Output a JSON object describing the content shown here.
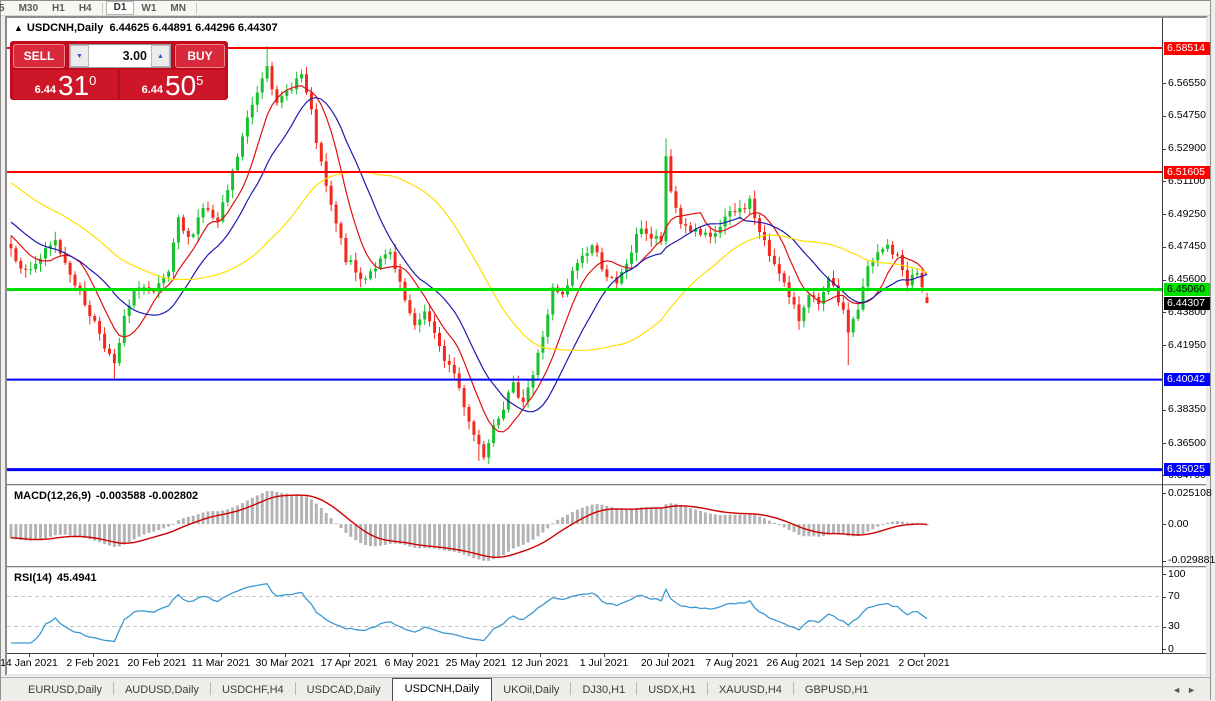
{
  "toolbar": {
    "timeframes": [
      {
        "label": "5",
        "active": false
      },
      {
        "label": "M30",
        "active": false
      },
      {
        "label": "H1",
        "active": false
      },
      {
        "label": "H4",
        "active": false
      },
      {
        "label": "D1",
        "active": true
      },
      {
        "label": "W1",
        "active": false
      },
      {
        "label": "MN",
        "active": false
      }
    ]
  },
  "chart_header": {
    "marker": "▲",
    "symbol_title": "USDCNH,Daily",
    "quote_line": "6.44625 6.44891 6.44296 6.44307"
  },
  "trade_panel": {
    "sell_label": "SELL",
    "buy_label": "BUY",
    "volume_value": "3.00",
    "spin_down_icon": "▼",
    "spin_up_icon": "▲",
    "sell_price": {
      "prefix": "6.44",
      "big": "31",
      "sup": "0"
    },
    "buy_price": {
      "prefix": "6.44",
      "big": "50",
      "sup": "5"
    }
  },
  "chart_data": {
    "type": "candlestick",
    "symbol": "USDCNH",
    "period": "Daily",
    "last_ohlc": {
      "open": 6.44625,
      "high": 6.44891,
      "low": 6.44296,
      "close": 6.44307
    },
    "current_price_label": "6.44307",
    "up_color": "#17c22e",
    "down_color": "#f3291b",
    "price_axis_ticks": [
      6.5655,
      6.5475,
      6.529,
      6.511,
      6.4925,
      6.4745,
      6.456,
      6.438,
      6.4195,
      6.3835,
      6.365,
      6.347
    ],
    "levels": [
      {
        "price": 6.58514,
        "label": "6.58514",
        "color": "#ff0000",
        "text_color": "#ffffff",
        "width": 2
      },
      {
        "price": 6.51605,
        "label": "6.51605",
        "color": "#ff0000",
        "text_color": "#ffffff",
        "width": 2
      },
      {
        "price": 6.4506,
        "label": "6.45060",
        "color": "#00e000",
        "text_color": "#000000",
        "width": 3
      },
      {
        "price": 6.40042,
        "label": "6.40042",
        "color": "#0000ff",
        "text_color": "#ffffff",
        "width": 2
      },
      {
        "price": 6.35025,
        "label": "6.35025",
        "color": "#0000ff",
        "text_color": "#ffffff",
        "width": 3
      }
    ],
    "time_axis_labels": [
      "14 Jan 2021",
      "2 Feb 2021",
      "20 Feb 2021",
      "11 Mar 2021",
      "30 Mar 2021",
      "17 Apr 2021",
      "6 May 2021",
      "25 May 2021",
      "12 Jun 2021",
      "1 Jul 2021",
      "20 Jul 2021",
      "7 Aug 2021",
      "26 Aug 2021",
      "14 Sep 2021",
      "2 Oct 2021"
    ],
    "candle_count": 187,
    "price_anchors": [
      [
        0,
        6.474
      ],
      [
        3,
        6.46
      ],
      [
        6,
        6.468
      ],
      [
        9,
        6.477
      ],
      [
        12,
        6.461
      ],
      [
        15,
        6.443
      ],
      [
        18,
        6.427
      ],
      [
        21,
        6.407
      ],
      [
        23,
        6.434
      ],
      [
        26,
        6.454
      ],
      [
        29,
        6.447
      ],
      [
        32,
        6.46
      ],
      [
        34,
        6.488
      ],
      [
        36,
        6.478
      ],
      [
        39,
        6.497
      ],
      [
        42,
        6.487
      ],
      [
        45,
        6.515
      ],
      [
        48,
        6.545
      ],
      [
        52,
        6.578
      ],
      [
        54,
        6.552
      ],
      [
        57,
        6.565
      ],
      [
        59,
        6.57
      ],
      [
        61,
        6.548
      ],
      [
        63,
        6.519
      ],
      [
        65,
        6.496
      ],
      [
        68,
        6.468
      ],
      [
        71,
        6.456
      ],
      [
        74,
        6.464
      ],
      [
        77,
        6.47
      ],
      [
        79,
        6.452
      ],
      [
        82,
        6.428
      ],
      [
        84,
        6.44
      ],
      [
        87,
        6.417
      ],
      [
        90,
        6.404
      ],
      [
        92,
        6.387
      ],
      [
        94,
        6.37
      ],
      [
        96,
        6.359
      ],
      [
        98,
        6.377
      ],
      [
        100,
        6.386
      ],
      [
        102,
        6.396
      ],
      [
        104,
        6.39
      ],
      [
        106,
        6.403
      ],
      [
        108,
        6.425
      ],
      [
        110,
        6.45
      ],
      [
        112,
        6.446
      ],
      [
        115,
        6.466
      ],
      [
        118,
        6.475
      ],
      [
        121,
        6.459
      ],
      [
        123,
        6.452
      ],
      [
        126,
        6.472
      ],
      [
        128,
        6.486
      ],
      [
        130,
        6.479
      ],
      [
        132,
        6.478
      ],
      [
        133,
        6.522
      ],
      [
        134,
        6.505
      ],
      [
        136,
        6.488
      ],
      [
        139,
        6.482
      ],
      [
        142,
        6.478
      ],
      [
        145,
        6.49
      ],
      [
        148,
        6.495
      ],
      [
        150,
        6.5
      ],
      [
        152,
        6.482
      ],
      [
        154,
        6.47
      ],
      [
        156,
        6.462
      ],
      [
        158,
        6.445
      ],
      [
        160,
        6.434
      ],
      [
        162,
        6.45
      ],
      [
        164,
        6.44
      ],
      [
        166,
        6.455
      ],
      [
        168,
        6.445
      ],
      [
        170,
        6.428
      ],
      [
        172,
        6.44
      ],
      [
        174,
        6.462
      ],
      [
        176,
        6.47
      ],
      [
        178,
        6.475
      ],
      [
        180,
        6.468
      ],
      [
        182,
        6.455
      ],
      [
        184,
        6.46
      ],
      [
        186,
        6.44307
      ]
    ],
    "spikes": [
      {
        "i": 21,
        "low": 6.401
      },
      {
        "i": 52,
        "high": 6.5862
      },
      {
        "i": 95,
        "low": 6.3551
      },
      {
        "i": 133,
        "high": 6.5348
      },
      {
        "i": 170,
        "low": 6.4085
      }
    ],
    "moving_averages": [
      {
        "period": 8,
        "color": "#e01010"
      },
      {
        "period": 16,
        "color": "#1b1bb0"
      },
      {
        "period": 40,
        "color": "#ffdf00"
      }
    ],
    "macd": {
      "name": "MACD(12,26,9)",
      "values_text": "-0.003588 -0.002802",
      "fast": 12,
      "slow": 26,
      "signal_period": 9,
      "axis_labels": [
        {
          "label": "0.025108",
          "value": 0.025108
        },
        {
          "label": "0.00",
          "value": 0.0
        },
        {
          "label": "-0.029881",
          "value": -0.029881
        }
      ],
      "hist_color": "#b4b4b4",
      "signal_color": "#d00000"
    },
    "rsi": {
      "name": "RSI(14)",
      "value_text": "45.4941",
      "period": 14,
      "axis_labels": [
        {
          "label": "100",
          "value": 100
        },
        {
          "label": "70",
          "value": 70
        },
        {
          "label": "30",
          "value": 30
        },
        {
          "label": "0",
          "value": 0
        }
      ],
      "level_lines": [
        70,
        30
      ],
      "color": "#3b9ad1"
    }
  },
  "tabs": {
    "items": [
      {
        "label": "EURUSD,Daily",
        "active": false
      },
      {
        "label": "AUDUSD,Daily",
        "active": false
      },
      {
        "label": "USDCHF,H4",
        "active": false
      },
      {
        "label": "USDCAD,Daily",
        "active": false
      },
      {
        "label": "USDCNH,Daily",
        "active": true
      },
      {
        "label": "UKOil,Daily",
        "active": false
      },
      {
        "label": "DJ30,H1",
        "active": false
      },
      {
        "label": "USDX,H1",
        "active": false
      },
      {
        "label": "XAUUSD,H4",
        "active": false
      },
      {
        "label": "GBPUSD,H1",
        "active": false
      }
    ],
    "scroll_left_icon": "◄",
    "scroll_right_icon": "►"
  }
}
